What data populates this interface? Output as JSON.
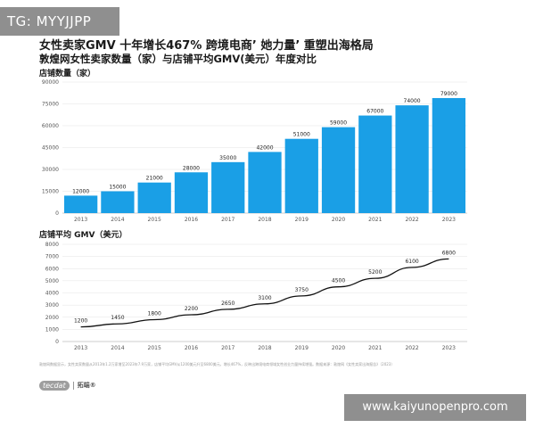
{
  "badge": "TG: MYYJJPP",
  "title": "女性卖家GMV 十年增长467%  跨境电商’ 她力量’ 重塑出海格局",
  "subtitle": "敦煌网女性卖家数量（家）与店铺平均GMV(美元）年度对比",
  "footnote": "敦煌网数据显示，女性卖家数量从2013年1.2万家增至2023年7.9万家，店铺平均GMV从1200美元升至6800美元，增长467%，反映出跨境电商领域女性创业力量持续增强。数据来源：敦煌网《女性卖家出海报告》（2023）",
  "logo": {
    "mark": "tecdat",
    "text": "拓端®"
  },
  "watermark": "www.kaiyunopenpro.com",
  "colors": {
    "bar": "#1a9fe6",
    "line": "#111111"
  },
  "chart_data": [
    {
      "type": "bar",
      "ylabel": "店铺数量（家）",
      "categories": [
        "2013",
        "2014",
        "2015",
        "2016",
        "2017",
        "2018",
        "2019",
        "2020",
        "2021",
        "2022",
        "2023"
      ],
      "values": [
        12000,
        15000,
        21000,
        28000,
        35000,
        42000,
        51000,
        59000,
        67000,
        74000,
        79000
      ],
      "yticks": [
        0,
        15000,
        30000,
        45000,
        60000,
        75000,
        90000
      ],
      "ylim": [
        0,
        90000
      ],
      "grid": true
    },
    {
      "type": "line",
      "ylabel": "店铺平均 GMV（美元）",
      "categories": [
        "2013",
        "2014",
        "2015",
        "2016",
        "2017",
        "2018",
        "2019",
        "2020",
        "2021",
        "2022",
        "2023"
      ],
      "values": [
        1200,
        1450,
        1800,
        2200,
        2650,
        3100,
        3750,
        4500,
        5200,
        6100,
        6800
      ],
      "yticks": [
        0,
        1000,
        2000,
        3000,
        4000,
        5000,
        6000,
        7000,
        8000
      ],
      "ylim": [
        0,
        8000
      ],
      "grid": true
    }
  ]
}
